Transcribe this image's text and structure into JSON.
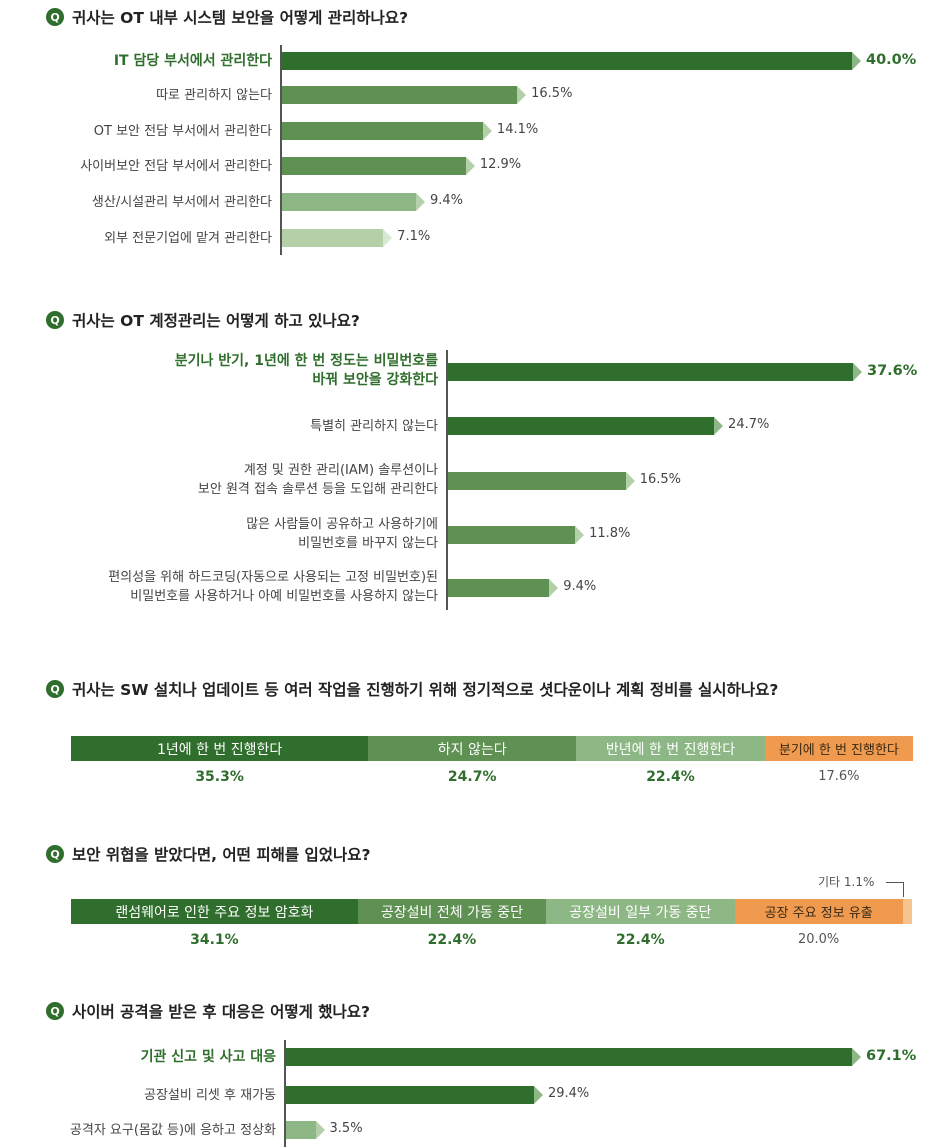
{
  "q_icon": "Q",
  "colors": {
    "dark": "#2f6e2c",
    "mid": "#5e9152",
    "light": "#8db784",
    "pale": "#b3d0a8",
    "orange": "#f09a50",
    "orange_light": "#f7c38e"
  },
  "chart_data": [
    {
      "type": "bar",
      "orientation": "horizontal",
      "title": "귀사는 OT 내부 시스템 보안을 어떻게 관리하나요?",
      "categories": [
        "IT 담당 부서에서 관리한다",
        "따로 관리하지 않는다",
        "OT 보안 전담 부서에서 관리한다",
        "사이버보안 전담 부서에서 관리한다",
        "생산/시설관리 부서에서 관리한다",
        "외부 전문기업에 맡겨 관리한다"
      ],
      "values": [
        40.0,
        16.5,
        14.1,
        12.9,
        9.4,
        7.1
      ],
      "value_labels": [
        "40.0%",
        "16.5%",
        "14.1%",
        "12.9%",
        "9.4%",
        "7.1%"
      ]
    },
    {
      "type": "bar",
      "orientation": "horizontal",
      "title": "귀사는 OT 계정관리는 어떻게 하고 있나요?",
      "categories": [
        [
          "분기나 반기, 1년에 한 번 정도는 비밀번호를",
          "바꿔 보안을 강화한다"
        ],
        [
          "특별히 관리하지 않는다"
        ],
        [
          "계정 및 권한 관리(IAM) 솔루션이나",
          "보안 원격 접속 솔루션 등을 도입해 관리한다"
        ],
        [
          "많은 사람들이 공유하고 사용하기에",
          "비밀번호를 바꾸지 않는다"
        ],
        [
          "편의성을 위해 하드코딩(자동으로 사용되는 고정 비밀번호)된",
          "비밀번호를 사용하거나 아예 비밀번호를 사용하지 않는다"
        ]
      ],
      "values": [
        37.6,
        24.7,
        16.5,
        11.8,
        9.4
      ],
      "value_labels": [
        "37.6%",
        "24.7%",
        "16.5%",
        "11.8%",
        "9.4%"
      ]
    },
    {
      "type": "bar",
      "orientation": "stacked-horizontal",
      "title": "귀사는 SW 설치나 업데이트 등 여러 작업을 진행하기 위해 정기적으로 셧다운이나 계획 정비를 실시하나요?",
      "categories": [
        "1년에 한 번 진행한다",
        "하지 않는다",
        "반년에 한 번 진행한다",
        "분기에 한 번 진행한다"
      ],
      "values": [
        35.3,
        24.7,
        22.4,
        17.6
      ],
      "value_labels": [
        "35.3%",
        "24.7%",
        "22.4%",
        "17.6%"
      ]
    },
    {
      "type": "bar",
      "orientation": "stacked-horizontal",
      "title": "보안 위협을 받았다면, 어떤 피해를 입었나요?",
      "categories": [
        "랜섬웨어로 인한 주요 정보 암호화",
        "공장설비 전체 가동 중단",
        "공장설비 일부 가동 중단",
        "공장 주요 정보 유출",
        "기타"
      ],
      "values": [
        34.1,
        22.4,
        22.4,
        20.0,
        1.1
      ],
      "value_labels": [
        "34.1%",
        "22.4%",
        "22.4%",
        "20.0%",
        "1.1%"
      ],
      "annotation": "기타 1.1%"
    },
    {
      "type": "bar",
      "orientation": "horizontal",
      "title": "사이버 공격을 받은 후 대응은 어떻게 했나요?",
      "categories": [
        "기관 신고 및 사고 대응",
        "공장설비 리셋 후 재가동",
        "공격자 요구(몸값 등)에 응하고 정상화"
      ],
      "values": [
        67.1,
        29.4,
        3.5
      ],
      "value_labels": [
        "67.1%",
        "29.4%",
        "3.5%"
      ]
    }
  ]
}
